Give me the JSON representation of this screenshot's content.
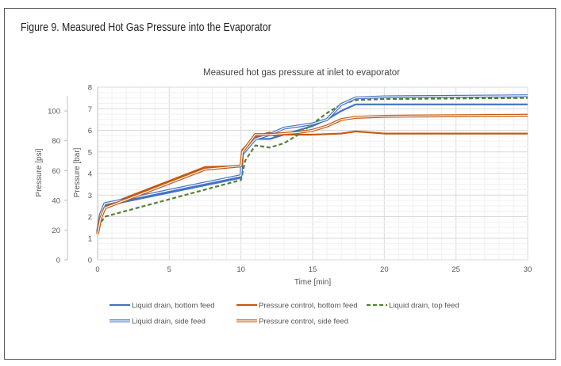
{
  "figure_title": "Figure 9. Measured Hot Gas Pressure into the Evaporator",
  "colors": {
    "blue": "#4472c4",
    "orange": "#c55a11",
    "green": "#548235"
  },
  "chart_data": {
    "type": "line",
    "title": "Measured hot gas pressure at inlet to evaporator",
    "xlabel": "Time [min]",
    "ylabel": "Pressure [bar]",
    "ylabel_secondary": "Pressure [psi]",
    "xlim": [
      0,
      30
    ],
    "ylim": [
      0,
      8
    ],
    "xticks": [
      0,
      5,
      10,
      15,
      20,
      25,
      30
    ],
    "yticks": [
      0,
      1,
      2,
      3,
      4,
      5,
      6,
      7,
      8
    ],
    "yticks_secondary": [
      0,
      20,
      40,
      60,
      80,
      100
    ],
    "grid": true,
    "legend_position": "bottom",
    "series": [
      {
        "name": "Liquid drain, bottom feed",
        "color": "#4472c4",
        "style": "solid",
        "x": [
          0,
          0.2,
          0.5,
          10,
          10.1,
          10.5,
          11,
          12,
          13,
          15,
          16,
          17,
          18,
          19,
          30
        ],
        "y": [
          1.3,
          2.0,
          2.5,
          3.8,
          4.8,
          5.4,
          5.6,
          5.6,
          5.8,
          6.2,
          6.5,
          6.9,
          7.2,
          7.2,
          7.2
        ]
      },
      {
        "name": "Pressure control, bottom feed",
        "color": "#c55a11",
        "style": "solid",
        "x": [
          0,
          0.2,
          0.5,
          7.5,
          10,
          10.1,
          11,
          12,
          12.3,
          13,
          15,
          17,
          18,
          20,
          30
        ],
        "y": [
          1.2,
          2.0,
          2.5,
          4.3,
          4.35,
          5.1,
          5.7,
          5.9,
          5.75,
          5.8,
          5.8,
          5.85,
          5.95,
          5.85,
          5.85
        ]
      },
      {
        "name": "Liquid drain, top feed",
        "color": "#548235",
        "style": "dashed",
        "x": [
          0,
          0.2,
          0.5,
          10,
          10.3,
          11,
          12,
          13,
          14,
          15,
          16,
          17,
          18,
          20,
          30
        ],
        "y": [
          1.2,
          1.7,
          2.0,
          3.7,
          4.6,
          5.3,
          5.2,
          5.4,
          5.8,
          6.3,
          6.8,
          7.2,
          7.4,
          7.45,
          7.5
        ]
      },
      {
        "name": "Liquid drain, side feed",
        "color": "#4472c4",
        "style": "double",
        "x": [
          0,
          0.2,
          0.5,
          10,
          10.1,
          11,
          12,
          13,
          15,
          16,
          17,
          18,
          20,
          30
        ],
        "y": [
          1.3,
          2.1,
          2.6,
          3.9,
          4.9,
          5.6,
          5.8,
          6.1,
          6.3,
          6.5,
          7.2,
          7.5,
          7.55,
          7.6
        ]
      },
      {
        "name": "Pressure control, side feed",
        "color": "#c55a11",
        "style": "double",
        "x": [
          0,
          0.2,
          0.5,
          7.5,
          10,
          10.1,
          11,
          12,
          14,
          15,
          16,
          17,
          18,
          20,
          30
        ],
        "y": [
          1.2,
          1.9,
          2.4,
          4.2,
          4.35,
          5.0,
          5.8,
          5.8,
          5.9,
          6.0,
          6.2,
          6.5,
          6.6,
          6.65,
          6.7
        ]
      }
    ]
  }
}
